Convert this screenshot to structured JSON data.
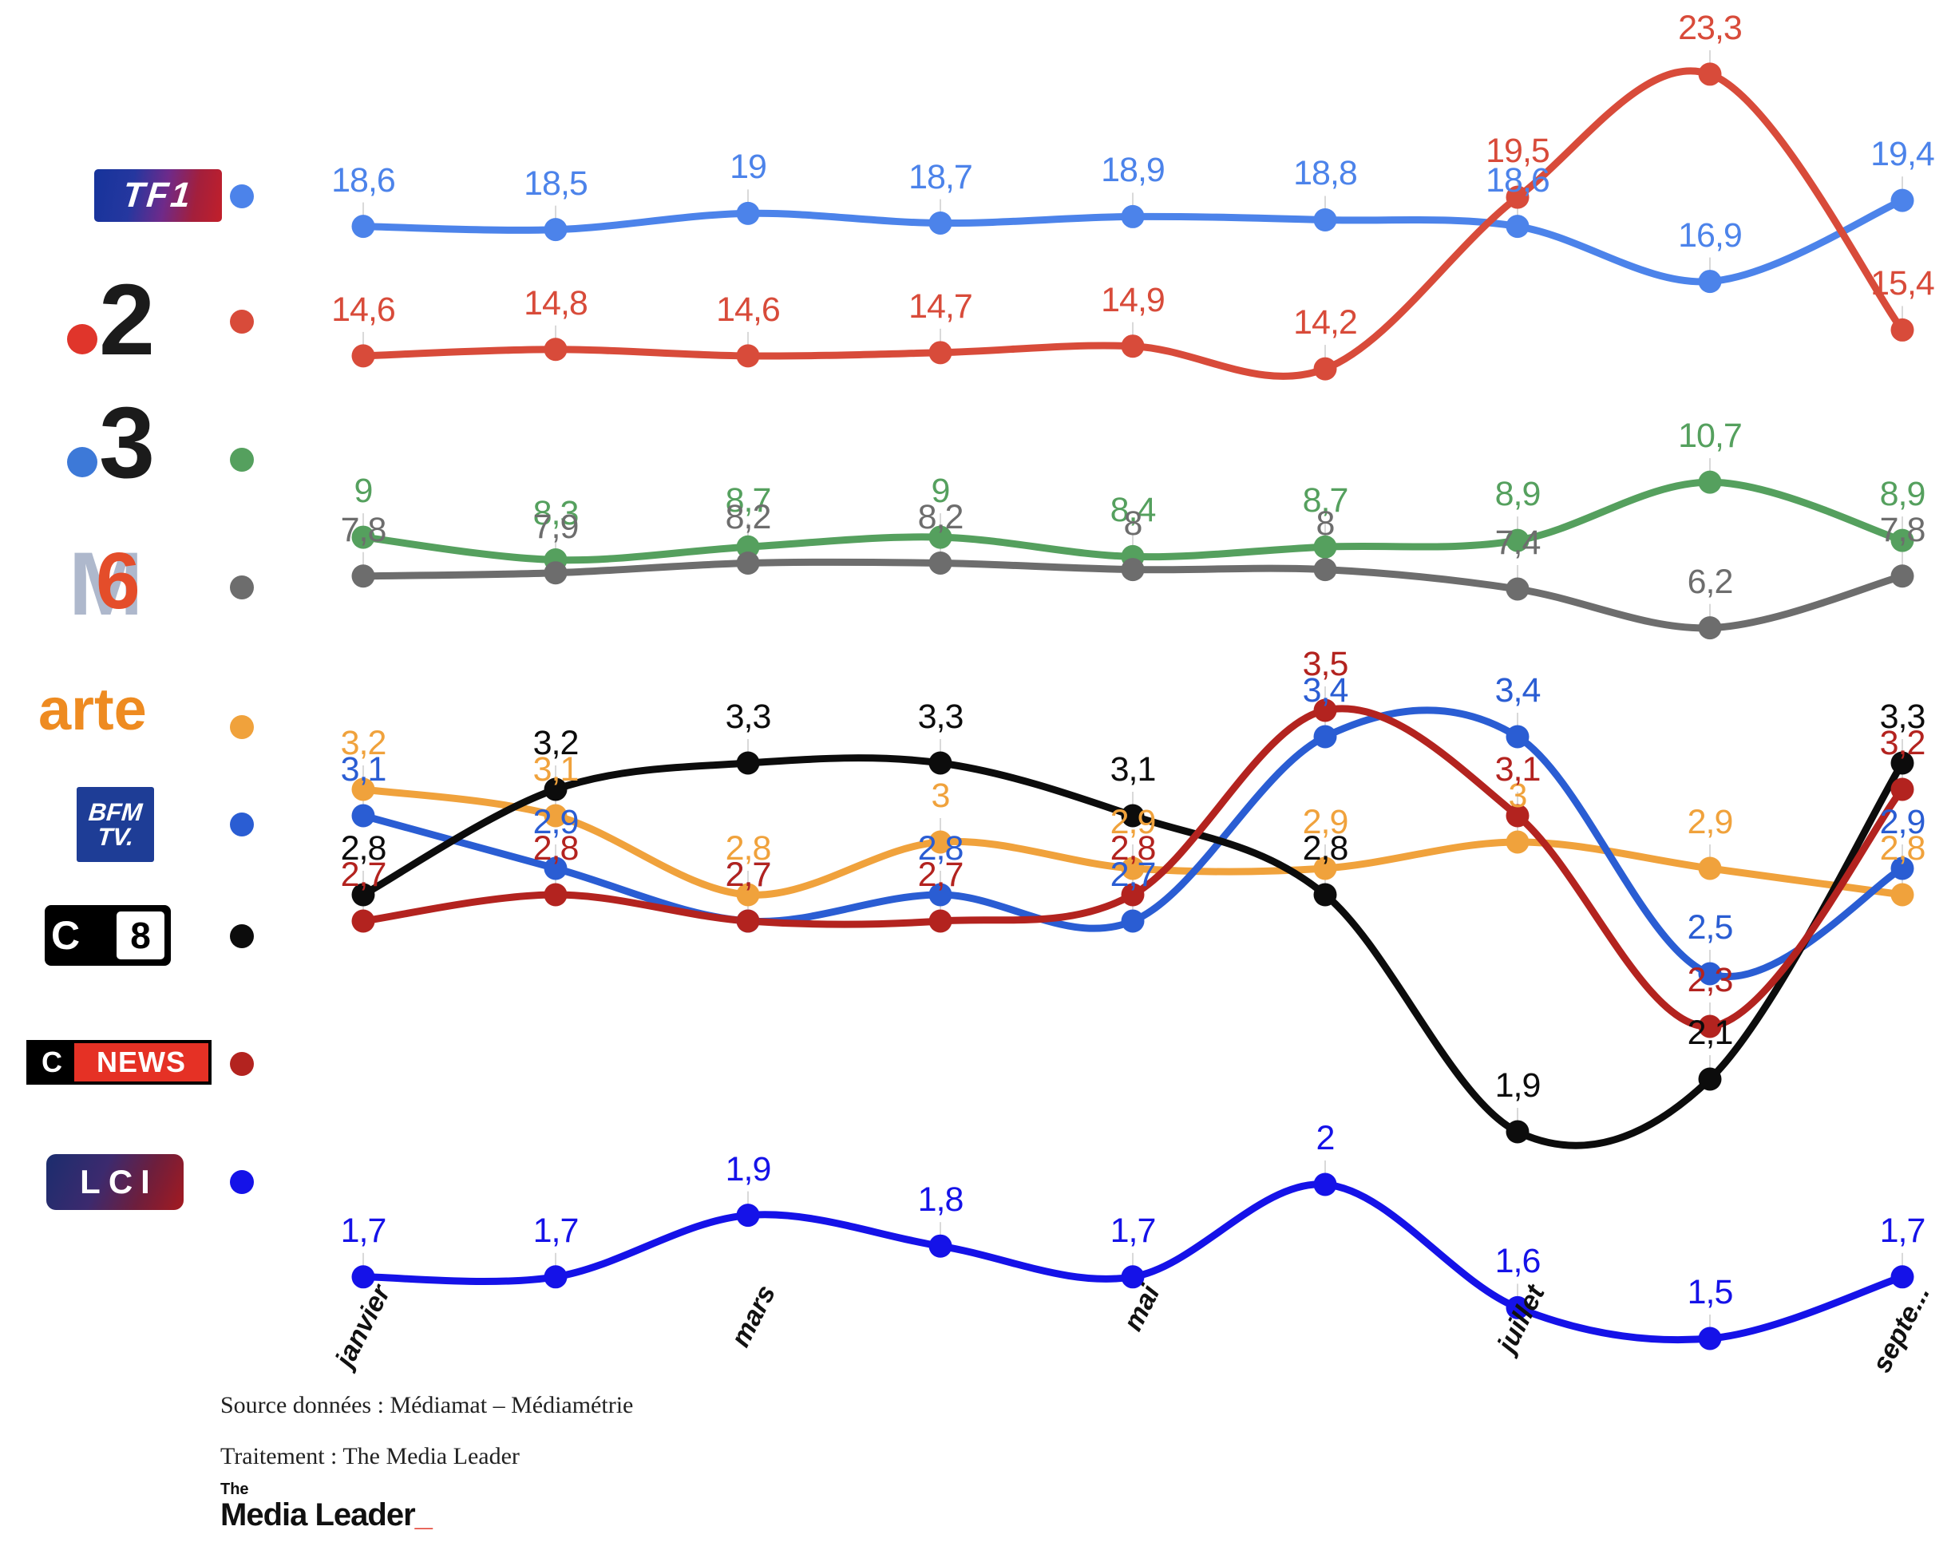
{
  "channels": [
    {
      "name": "TF1",
      "color": "#4c83ea",
      "logo": {
        "text": "TF1"
      }
    },
    {
      "name": "France 2",
      "color": "#d84b3a",
      "logo": {
        "digit": "2"
      }
    },
    {
      "name": "France 3",
      "color": "#55a05e",
      "logo": {
        "digit": "3"
      }
    },
    {
      "name": "M6",
      "color": "#6d6d6d",
      "logo": {
        "m": "M",
        "six": "6"
      }
    },
    {
      "name": "arte",
      "color": "#f0a23c",
      "logo": {
        "text": "arte"
      }
    },
    {
      "name": "BFM TV",
      "color": "#2a5dd3",
      "logo": {
        "line1": "BFM",
        "line2": "TV."
      }
    },
    {
      "name": "C8",
      "color": "#0c0c0c",
      "logo": {
        "c": "C",
        "eight": "8"
      }
    },
    {
      "name": "CNEWS",
      "color": "#b3231f",
      "logo": {
        "c": "C",
        "news": "NEWS"
      }
    },
    {
      "name": "LCI",
      "color": "#1512e8",
      "logo": {
        "text": "LCI"
      }
    }
  ],
  "chart_data": {
    "type": "line",
    "months_count": 9,
    "x_tick_labels": [
      "janvier",
      "mars",
      "mai",
      "juillet",
      "septe..."
    ],
    "grid": false,
    "legend_position": "left",
    "series": [
      {
        "name": "TF1",
        "band": "main",
        "color": "#4c83ea",
        "values": [
          18.6,
          18.5,
          19,
          18.7,
          18.9,
          18.8,
          18.6,
          16.9,
          19.4
        ],
        "labels": [
          "18,6",
          "18,5",
          "19",
          "18,7",
          "18,9",
          "18,8",
          "18,6",
          "16,9",
          "19,4"
        ]
      },
      {
        "name": "France 2",
        "band": "main",
        "color": "#d84b3a",
        "values": [
          14.6,
          14.8,
          14.6,
          14.7,
          14.9,
          14.2,
          19.5,
          23.3,
          15.4
        ],
        "labels": [
          "14,6",
          "14,8",
          "14,6",
          "14,7",
          "14,9",
          "14,2",
          "19,5",
          "23,3",
          "15,4"
        ]
      },
      {
        "name": "France 3",
        "band": "main",
        "color": "#55a05e",
        "values": [
          9,
          8.3,
          8.7,
          9,
          8.4,
          8.7,
          8.9,
          10.7,
          8.9
        ],
        "labels": [
          "9",
          "8,3",
          "8,7",
          "9",
          "8,4",
          "8,7",
          "8,9",
          "10,7",
          "8,9"
        ]
      },
      {
        "name": "M6",
        "band": "main",
        "color": "#6d6d6d",
        "values": [
          7.8,
          7.9,
          8.2,
          8.2,
          8,
          8,
          7.4,
          6.2,
          7.8
        ],
        "labels": [
          "7,8",
          "7,9",
          "8,2",
          "8,2",
          "8",
          "8",
          "7,4",
          "6,2",
          "7,8"
        ]
      },
      {
        "name": "arte",
        "band": "news",
        "color": "#f0a23c",
        "values": [
          3.2,
          3.1,
          2.8,
          3,
          2.9,
          2.9,
          3,
          2.9,
          2.8
        ],
        "labels": [
          "3,2",
          "3,1",
          "2,8",
          "3",
          "2,9",
          "2,9",
          "3",
          "2,9",
          "2,8"
        ]
      },
      {
        "name": "BFM TV",
        "band": "news",
        "color": "#2a5dd3",
        "values": [
          3.1,
          2.9,
          2.7,
          2.8,
          2.7,
          3.4,
          3.4,
          2.5,
          2.9
        ],
        "labels": [
          "3,1",
          "2,9",
          "2,7",
          "2,8",
          "2,7",
          "3,4",
          "3,4",
          "2,5",
          "2,9"
        ]
      },
      {
        "name": "C8",
        "band": "news",
        "color": "#0c0c0c",
        "values": [
          2.8,
          3.2,
          3.3,
          3.3,
          3.1,
          2.8,
          1.9,
          2.1,
          3.3
        ],
        "labels": [
          "2,8",
          "3,2",
          "3,3",
          "3,3",
          "3,1",
          "2,8",
          "1,9",
          "2,1",
          "3,3"
        ]
      },
      {
        "name": "CNEWS",
        "band": "news",
        "color": "#b3231f",
        "values": [
          2.7,
          2.8,
          2.7,
          2.7,
          2.8,
          3.5,
          3.1,
          2.3,
          3.2
        ],
        "labels": [
          "2,7",
          "2,8",
          "2,7",
          "2,7",
          "2,8",
          "3,5",
          "3,1",
          "2,3",
          "3,2"
        ]
      },
      {
        "name": "LCI",
        "band": "lci",
        "color": "#1512e8",
        "values": [
          1.7,
          1.7,
          1.9,
          1.8,
          1.7,
          2,
          1.6,
          1.5,
          1.7
        ],
        "labels": [
          "1,7",
          "1,7",
          "1,9",
          "1,8",
          "1,7",
          "2",
          "1,6",
          "1,5",
          "1,7"
        ]
      }
    ]
  },
  "footer": {
    "source": "Source données : Médiamat – Médiamétrie",
    "traitement": "Traitement : The Media Leader",
    "brand": {
      "the": "The",
      "name": "Media Leader",
      "underscore": "_"
    }
  }
}
